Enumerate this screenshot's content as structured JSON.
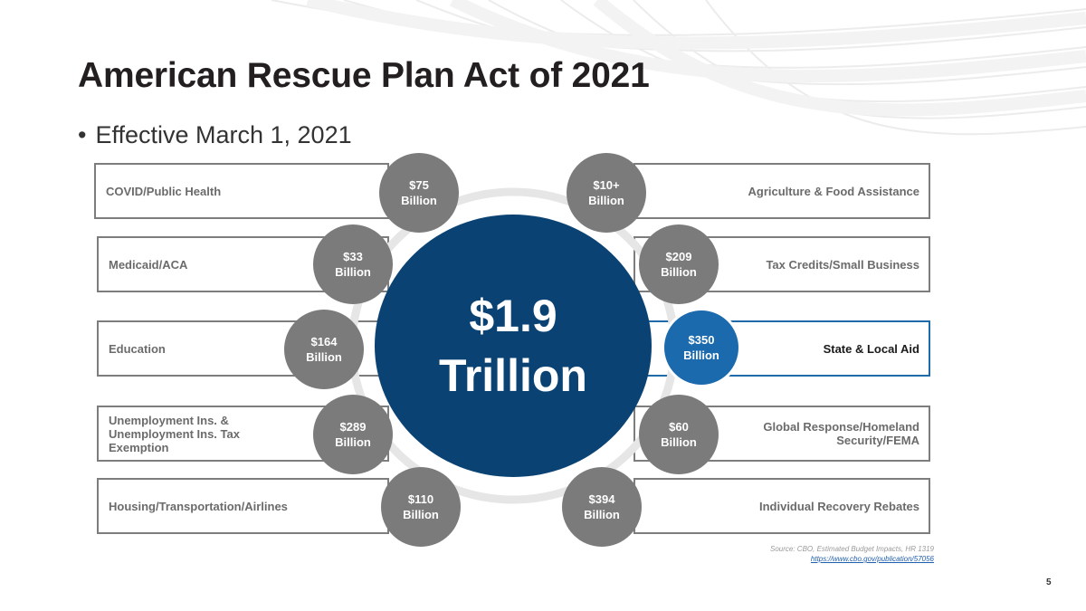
{
  "slide": {
    "title": "American Rescue Plan Act of 2021",
    "bullet": "Effective March 1, 2021",
    "page_number": "5"
  },
  "center": {
    "amount": "$1.9",
    "unit": "Trillion",
    "color": "#0a4373"
  },
  "categories": [
    {
      "label": "COVID/Public Health",
      "amount": "$75",
      "unit": "Billion",
      "side": "left"
    },
    {
      "label": "Medicaid/ACA",
      "amount": "$33",
      "unit": "Billion",
      "side": "left"
    },
    {
      "label": "Education",
      "amount": "$164",
      "unit": "Billion",
      "side": "left"
    },
    {
      "label": "Unemployment Ins. & Unemployment Ins. Tax Exemption",
      "amount": "$289",
      "unit": "Billion",
      "side": "left"
    },
    {
      "label": "Housing/Transportation/Airlines",
      "amount": "$110",
      "unit": "Billion",
      "side": "left"
    },
    {
      "label": "Agriculture & Food Assistance",
      "amount": "$10+",
      "unit": "Billion",
      "side": "right"
    },
    {
      "label": "Tax Credits/Small Business",
      "amount": "$209",
      "unit": "Billion",
      "side": "right"
    },
    {
      "label": "State & Local Aid",
      "amount": "$350",
      "unit": "Billion",
      "side": "right",
      "highlighted": true
    },
    {
      "label": "Global Response/Homeland Security/FEMA",
      "amount": "$60",
      "unit": "Billion",
      "side": "right"
    },
    {
      "label": "Individual Recovery Rebates",
      "amount": "$394",
      "unit": "Billion",
      "side": "right"
    }
  ],
  "source": {
    "text": "Source: CBO, Estimated Budget Impacts, HR 1319",
    "link": "https://www.cbo.gov/publication/57056"
  },
  "colors": {
    "bubble": "#7b7b7b",
    "highlight": "#1b6aad",
    "ring": "#e6e6e6"
  }
}
